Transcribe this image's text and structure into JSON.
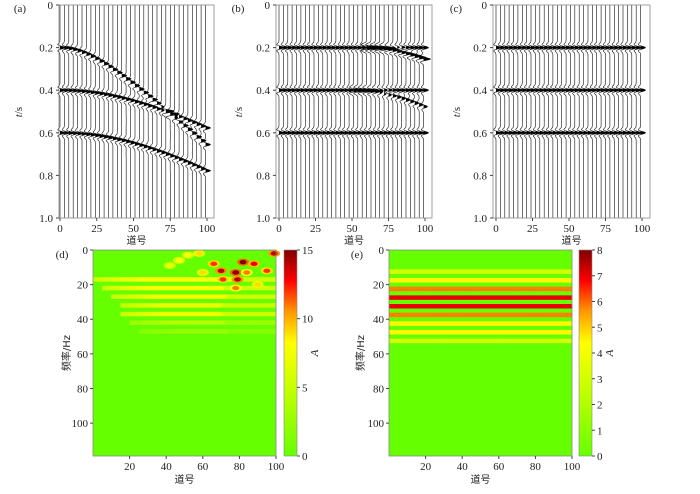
{
  "chart_data": [
    {
      "id": "a",
      "type": "wiggle",
      "label": "(a)",
      "xlabel": "道号",
      "ylabel_italic": "t",
      "ylabel_rest": "/s",
      "xlim": [
        0,
        100
      ],
      "ylim": [
        0,
        1.0
      ],
      "xticks": [
        "0",
        "25",
        "50",
        "75",
        "100"
      ],
      "yticks": [
        "0",
        "0.2",
        "0.4",
        "0.6",
        "0.8",
        "1.0"
      ],
      "trace_step": 3,
      "events": [
        {
          "t0": 0.2,
          "slowness": 0.0063,
          "x_from": 0,
          "amp": 1
        },
        {
          "t0": 0.4,
          "slowness": 0.0042,
          "x_from": 0,
          "amp": 1
        },
        {
          "t0": 0.6,
          "slowness": 0.005,
          "x_from": 0,
          "amp": 1
        }
      ]
    },
    {
      "id": "b",
      "type": "wiggle",
      "label": "(b)",
      "xlabel": "道号",
      "ylabel_italic": "t",
      "ylabel_rest": "/s",
      "xlim": [
        0,
        100
      ],
      "ylim": [
        0,
        1.0
      ],
      "xticks": [
        "0",
        "25",
        "50",
        "75",
        "100"
      ],
      "yticks": [
        "0",
        "0.2",
        "0.4",
        "0.6",
        "0.8",
        "1.0"
      ],
      "trace_step": 3,
      "events": [
        {
          "t0": 0.2,
          "slowness": 0,
          "x_from": 0,
          "amp": 1
        },
        {
          "t0": 0.4,
          "slowness": 0,
          "x_from": 0,
          "amp": 1
        },
        {
          "t0": 0.6,
          "slowness": 0,
          "x_from": 0,
          "amp": 1
        },
        {
          "t0": 0.4,
          "slowness": 0.0053,
          "x_from": 50,
          "amp": 0.8
        },
        {
          "t0": 0.2,
          "slowness": 0.004,
          "x_from": 60,
          "amp": 1.4
        }
      ]
    },
    {
      "id": "c",
      "type": "wiggle",
      "label": "(c)",
      "xlabel": "道号",
      "ylabel_italic": "t",
      "ylabel_rest": "/s",
      "xlim": [
        0,
        100
      ],
      "ylim": [
        0,
        1.0
      ],
      "xticks": [
        "0",
        "25",
        "50",
        "75",
        "100"
      ],
      "yticks": [
        "0",
        "0.2",
        "0.4",
        "0.6",
        "0.8",
        "1.0"
      ],
      "trace_step": 3,
      "events": [
        {
          "t0": 0.2,
          "slowness": 0,
          "x_from": 0,
          "amp": 1
        },
        {
          "t0": 0.4,
          "slowness": 0,
          "x_from": 0,
          "amp": 1
        },
        {
          "t0": 0.6,
          "slowness": 0,
          "x_from": 0,
          "amp": 1
        }
      ]
    },
    {
      "id": "d",
      "type": "heatmap",
      "label": "(d)",
      "xlabel": "道号",
      "ylabel": "频率/Hz",
      "colorbar_label": "A",
      "xlim": [
        0,
        100
      ],
      "ylim": [
        0,
        119
      ],
      "clim": [
        0,
        15
      ],
      "xticks": [
        "20",
        "40",
        "60",
        "80",
        "100"
      ],
      "yticks": [
        "0",
        "20",
        "40",
        "60",
        "80",
        "100"
      ],
      "cticks": [
        "0",
        "5",
        "10",
        "15"
      ],
      "bands": [
        {
          "freq": 17,
          "amp": 8,
          "x_from": 0
        },
        {
          "freq": 22,
          "amp": 8,
          "x_from": 5
        },
        {
          "freq": 27,
          "amp": 7.5,
          "x_from": 10
        },
        {
          "freq": 32,
          "amp": 7,
          "x_from": 15
        },
        {
          "freq": 37,
          "amp": 7.5,
          "x_from": 15
        },
        {
          "freq": 42,
          "amp": 4,
          "x_from": 20
        },
        {
          "freq": 47,
          "amp": 2.5,
          "x_from": 25
        }
      ],
      "hotspots": [
        {
          "trace": 52,
          "freq": 3,
          "amp": 8
        },
        {
          "trace": 47,
          "freq": 6,
          "amp": 8
        },
        {
          "trace": 42,
          "freq": 9,
          "amp": 7
        },
        {
          "trace": 58,
          "freq": 2,
          "amp": 9
        },
        {
          "trace": 66,
          "freq": 8,
          "amp": 12
        },
        {
          "trace": 70,
          "freq": 12,
          "amp": 14
        },
        {
          "trace": 71,
          "freq": 17,
          "amp": 12
        },
        {
          "trace": 60,
          "freq": 13,
          "amp": 9
        },
        {
          "trace": 78,
          "freq": 13,
          "amp": 15
        },
        {
          "trace": 79,
          "freq": 17,
          "amp": 14
        },
        {
          "trace": 82,
          "freq": 7,
          "amp": 15
        },
        {
          "trace": 84,
          "freq": 13,
          "amp": 11
        },
        {
          "trace": 88,
          "freq": 8,
          "amp": 13
        },
        {
          "trace": 95,
          "freq": 12,
          "amp": 12
        },
        {
          "trace": 99,
          "freq": 2,
          "amp": 14
        },
        {
          "trace": 78,
          "freq": 22,
          "amp": 11
        },
        {
          "trace": 90,
          "freq": 20,
          "amp": 9
        }
      ]
    },
    {
      "id": "e",
      "type": "heatmap",
      "label": "(e)",
      "xlabel": "道号",
      "ylabel": "频率/Hz",
      "colorbar_label": "A",
      "xlim": [
        0,
        100
      ],
      "ylim": [
        0,
        119
      ],
      "clim": [
        0,
        8
      ],
      "xticks": [
        "20",
        "40",
        "60",
        "80",
        "100"
      ],
      "yticks": [
        "0",
        "20",
        "40",
        "60",
        "80",
        "100"
      ],
      "cticks": [
        "0",
        "1",
        "2",
        "3",
        "4",
        "5",
        "6",
        "7",
        "8"
      ],
      "bands": [
        {
          "freq": 12.5,
          "amp": 3,
          "x_from": 0
        },
        {
          "freq": 17.5,
          "amp": 4.5,
          "x_from": 0
        },
        {
          "freq": 22.5,
          "amp": 5.8,
          "x_from": 0
        },
        {
          "freq": 27.5,
          "amp": 7,
          "x_from": 0
        },
        {
          "freq": 32.5,
          "amp": 7,
          "x_from": 0
        },
        {
          "freq": 37.5,
          "amp": 5.8,
          "x_from": 0
        },
        {
          "freq": 42.5,
          "amp": 4.5,
          "x_from": 0
        },
        {
          "freq": 47.5,
          "amp": 4.5,
          "x_from": 0
        },
        {
          "freq": 52.5,
          "amp": 3,
          "x_from": 0
        }
      ],
      "hotspots": []
    }
  ]
}
